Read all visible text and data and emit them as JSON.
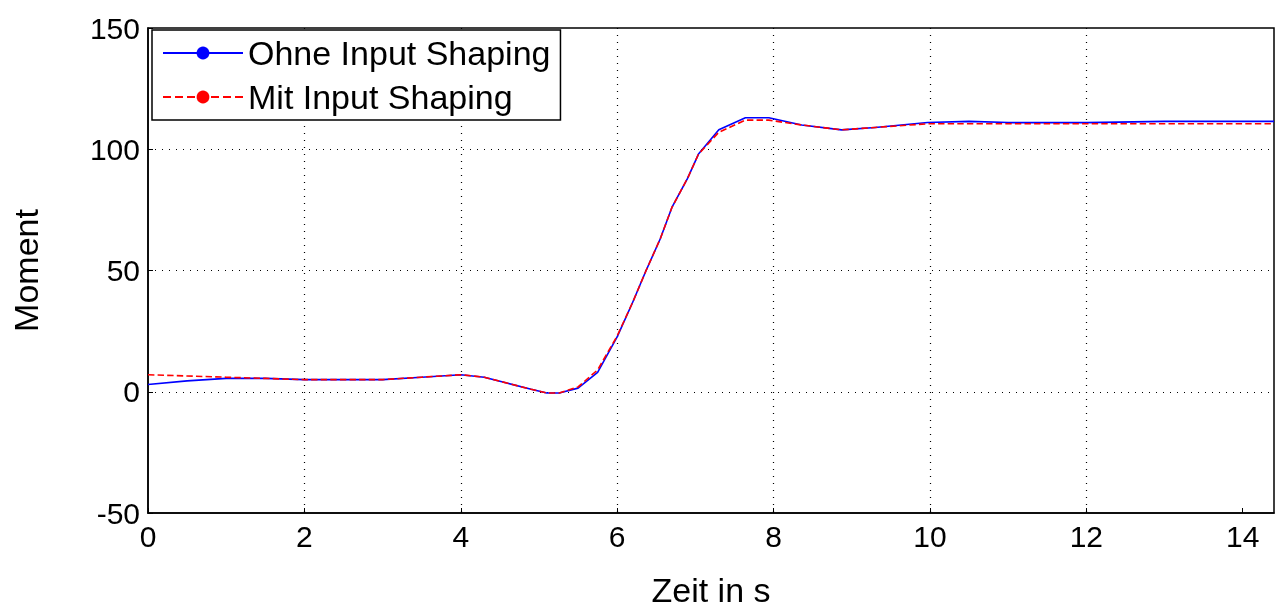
{
  "chart_data": {
    "type": "line",
    "xlabel": "Zeit in s",
    "ylabel": "Moment",
    "xlim": [
      0,
      14.4
    ],
    "xticks": [
      0,
      2,
      4,
      6,
      8,
      10,
      12,
      14
    ],
    "ylim": [
      -50,
      150
    ],
    "yticks": [
      -50,
      0,
      50,
      100,
      150
    ],
    "grid": true,
    "legend": "top left",
    "marker": "none",
    "series": [
      {
        "name": "Ohne Input Shaping",
        "color": "#0000ff",
        "line_style": "solid",
        "x": [
          0,
          0.5,
          1,
          1.5,
          2,
          2.5,
          3,
          3.5,
          4,
          4.3,
          4.6,
          4.9,
          5.1,
          5.26,
          5.5,
          5.75,
          6,
          6.2,
          6.37,
          6.55,
          6.7,
          6.9,
          7.04,
          7.3,
          7.64,
          7.94,
          8.36,
          8.87,
          9.3,
          9.97,
          10.5,
          11,
          12,
          13,
          14,
          14.4
        ],
        "values": [
          3,
          4.5,
          5.5,
          5.5,
          5,
          5,
          5,
          6,
          7,
          6,
          3.5,
          1,
          -0.5,
          -0.5,
          1.5,
          8,
          22.6,
          37,
          50,
          63,
          76,
          88,
          98,
          108,
          113,
          113,
          110,
          108,
          109,
          111,
          111.5,
          111,
          111,
          111.5,
          111.5,
          111.5
        ]
      },
      {
        "name": "Mit Input Shaping",
        "color": "#ff0000",
        "line_style": "dashed",
        "x": [
          0,
          0.5,
          1,
          1.5,
          2,
          2.5,
          3,
          3.5,
          4,
          4.3,
          4.6,
          4.9,
          5.1,
          5.26,
          5.5,
          5.75,
          6,
          6.2,
          6.37,
          6.55,
          6.7,
          6.9,
          7.04,
          7.3,
          7.64,
          7.94,
          8.36,
          8.87,
          9.3,
          9.97,
          10.5,
          11,
          12,
          13,
          14,
          14.4
        ],
        "values": [
          7,
          6.5,
          6,
          5.5,
          5,
          5,
          5,
          6,
          7,
          6,
          3.5,
          1,
          -0.5,
          -0.5,
          2,
          9,
          23,
          37,
          50,
          63,
          76,
          88,
          98,
          107,
          112,
          112,
          110,
          108,
          109,
          110.5,
          110.5,
          110.5,
          110.5,
          110.5,
          110.5,
          110.5
        ]
      }
    ]
  }
}
